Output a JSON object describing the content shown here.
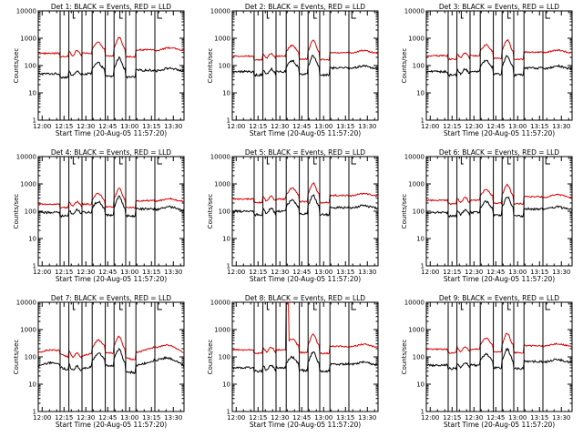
{
  "chart_data": {
    "type": "line",
    "layout": "3x3 grid",
    "y_scale": "log",
    "ylim": [
      1,
      10000
    ],
    "xlim_minutes": [
      0,
      100
    ],
    "x_ticks": [
      "12:00",
      "12:15",
      "12:30",
      "12:45",
      "13:00",
      "13:15",
      "13:30"
    ],
    "y_ticks": [
      "1",
      "10",
      "100",
      "1000",
      "10000"
    ],
    "xlabel": "Start Time (20-Aug-05 11:57:20)",
    "ylabel": "Counts/sec",
    "series_colors": {
      "events": "#000000",
      "lld": "#dd0000"
    },
    "marker_times_min": [
      15,
      21,
      30,
      37,
      46,
      52,
      60,
      67,
      80
    ],
    "panels": [
      {
        "title": "Det 1: BLACK = Events, RED = LLD",
        "black_base": 50,
        "red_base": 280,
        "red_spike": false,
        "pre_dip": false
      },
      {
        "title": "Det 2: BLACK = Events, RED = LLD",
        "black_base": 60,
        "red_base": 220,
        "red_spike": false,
        "pre_dip": false
      },
      {
        "title": "Det 3: BLACK = Events, RED = LLD",
        "black_base": 60,
        "red_base": 230,
        "red_spike": false,
        "pre_dip": false
      },
      {
        "title": "Det 4: BLACK = Events, RED = LLD",
        "black_base": 90,
        "red_base": 180,
        "red_spike": false,
        "pre_dip": false
      },
      {
        "title": "Det 5: BLACK = Events, RED = LLD",
        "black_base": 100,
        "red_base": 280,
        "red_spike": false,
        "pre_dip": false
      },
      {
        "title": "Det 6: BLACK = Events, RED = LLD",
        "black_base": 90,
        "red_base": 250,
        "red_spike": false,
        "pre_dip": false
      },
      {
        "title": "Det 7: BLACK = Events, RED = LLD",
        "black_base": 40,
        "red_base": 120,
        "red_spike": false,
        "pre_dip": true
      },
      {
        "title": "Det 8: BLACK = Events, RED = LLD",
        "black_base": 40,
        "red_base": 180,
        "red_spike": true,
        "pre_dip": false
      },
      {
        "title": "Det 9: BLACK = Events, RED = LLD",
        "black_base": 50,
        "red_base": 190,
        "red_spike": false,
        "pre_dip": false
      }
    ]
  }
}
